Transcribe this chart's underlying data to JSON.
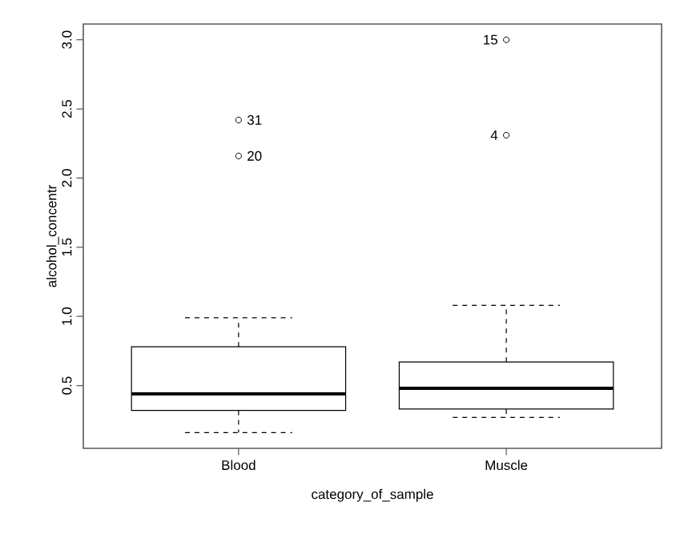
{
  "chart_data": {
    "type": "box",
    "xlabel": "category_of_sample",
    "ylabel": "alcohol_concentr",
    "categories": [
      "Blood",
      "Muscle"
    ],
    "boxes": [
      {
        "low": 0.16,
        "q1": 0.32,
        "median": 0.44,
        "q3": 0.78,
        "high": 0.99,
        "outliers": [
          2.42,
          2.16
        ]
      },
      {
        "low": 0.27,
        "q1": 0.33,
        "median": 0.48,
        "q3": 0.67,
        "high": 1.08,
        "outliers": [
          3.0,
          2.31
        ]
      }
    ],
    "ylim": [
      0.046,
      3.114
    ],
    "yticks": [
      {
        "value": 0.5,
        "label": "0.5"
      },
      {
        "value": 1.0,
        "label": "1.0"
      },
      {
        "value": 1.5,
        "label": "1.5"
      },
      {
        "value": 2.0,
        "label": "2.0"
      },
      {
        "value": 2.5,
        "label": "2.5"
      },
      {
        "value": 3.0,
        "label": "3.0"
      }
    ],
    "annotations": [
      "31",
      "20",
      "15",
      "4"
    ],
    "grid": false,
    "marker": "circle"
  }
}
